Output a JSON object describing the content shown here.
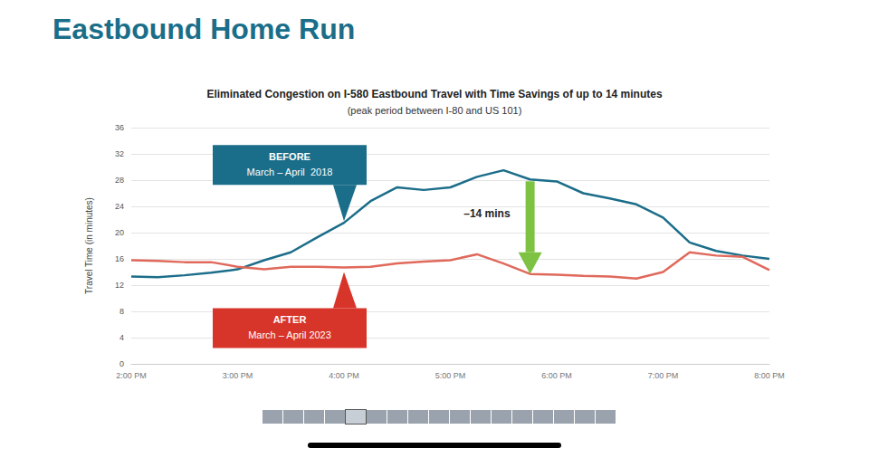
{
  "page_title": "Eastbound Home Run",
  "chart_data": {
    "type": "line",
    "title": "Eliminated Congestion on I-580 Eastbound Travel with Time Savings of up to 14 minutes",
    "subtitle": "(peak period between I-80 and US 101)",
    "y_label": "Travel Time (in minutes)",
    "categories": [
      "2:00 PM",
      null,
      null,
      null,
      "3:00 PM",
      null,
      null,
      null,
      "4:00 PM",
      null,
      null,
      null,
      "5:00 PM",
      null,
      null,
      null,
      "6:00 PM",
      null,
      null,
      null,
      "7:00 PM",
      null,
      null,
      null,
      "8:00 PM"
    ],
    "series": [
      {
        "name": "BEFORE",
        "period": "March – April  2018",
        "color": "#1b6d89",
        "values": [
          13.3,
          13.2,
          13.5,
          13.9,
          14.4,
          15.8,
          17.0,
          19.3,
          21.5,
          24.8,
          26.9,
          26.5,
          26.9,
          28.5,
          29.5,
          28.1,
          27.8,
          26.0,
          25.2,
          24.3,
          22.3,
          18.5,
          17.2,
          16.5,
          16.0
        ]
      },
      {
        "name": "AFTER",
        "period": "March – April 2023",
        "color": "#e0695b",
        "values": [
          15.8,
          15.7,
          15.5,
          15.5,
          14.8,
          14.4,
          14.8,
          14.8,
          14.7,
          14.8,
          15.3,
          15.6,
          15.8,
          16.7,
          15.3,
          13.7,
          13.6,
          13.4,
          13.3,
          13.0,
          14.0,
          17.0,
          16.5,
          16.3,
          14.3
        ]
      }
    ],
    "annotations": [
      {
        "text": "–14 mins"
      }
    ],
    "ylim": [
      0,
      36
    ],
    "yticks": [
      0,
      4,
      8,
      12,
      16,
      20,
      24,
      28,
      32,
      36
    ],
    "grid": true
  }
}
